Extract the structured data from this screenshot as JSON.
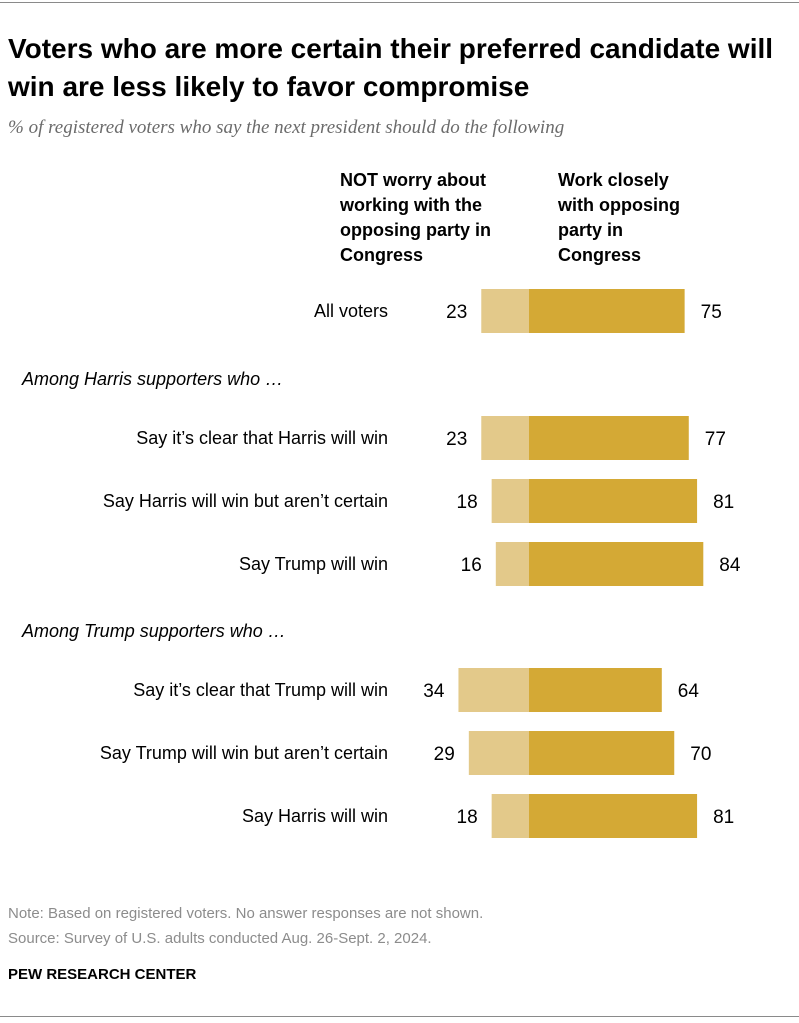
{
  "title": "Voters who are more certain their preferred candidate will win are less likely to favor compromise",
  "subtitle": "% of registered voters who say the next president should do the following",
  "col_headers": {
    "left": "NOT worry about working with the opposing party in Congress",
    "right": "Work closely with opposing party in Congress"
  },
  "colors": {
    "left_bar": "#e3c98a",
    "right_bar": "#d4a935"
  },
  "chart_data": {
    "type": "bar",
    "orientation": "horizontal-diverging",
    "series": [
      {
        "name": "NOT worry about working with the opposing party in Congress",
        "values": [
          23,
          23,
          18,
          16,
          34,
          29,
          18
        ]
      },
      {
        "name": "Work closely with opposing party in Congress",
        "values": [
          75,
          77,
          81,
          84,
          64,
          70,
          81
        ]
      }
    ],
    "categories": [
      "All voters",
      "Say it’s clear that Harris will win",
      "Say Harris will win but aren’t certain",
      "Say Trump will win",
      "Say it’s clear that Trump will win",
      "Say Trump will win but aren’t certain",
      "Say Harris will win"
    ],
    "groups": [
      {
        "label": "",
        "start": 0,
        "count": 1
      },
      {
        "label": "Among Harris supporters who …",
        "start": 1,
        "count": 3
      },
      {
        "label": "Among Trump supporters who …",
        "start": 4,
        "count": 3
      }
    ],
    "unit": "%"
  },
  "notes": {
    "note": "Note: Based on registered voters. No answer responses are not shown.",
    "source": "Source: Survey of U.S. adults conducted Aug. 26-Sept. 2, 2024."
  },
  "brand": "PEW RESEARCH CENTER"
}
